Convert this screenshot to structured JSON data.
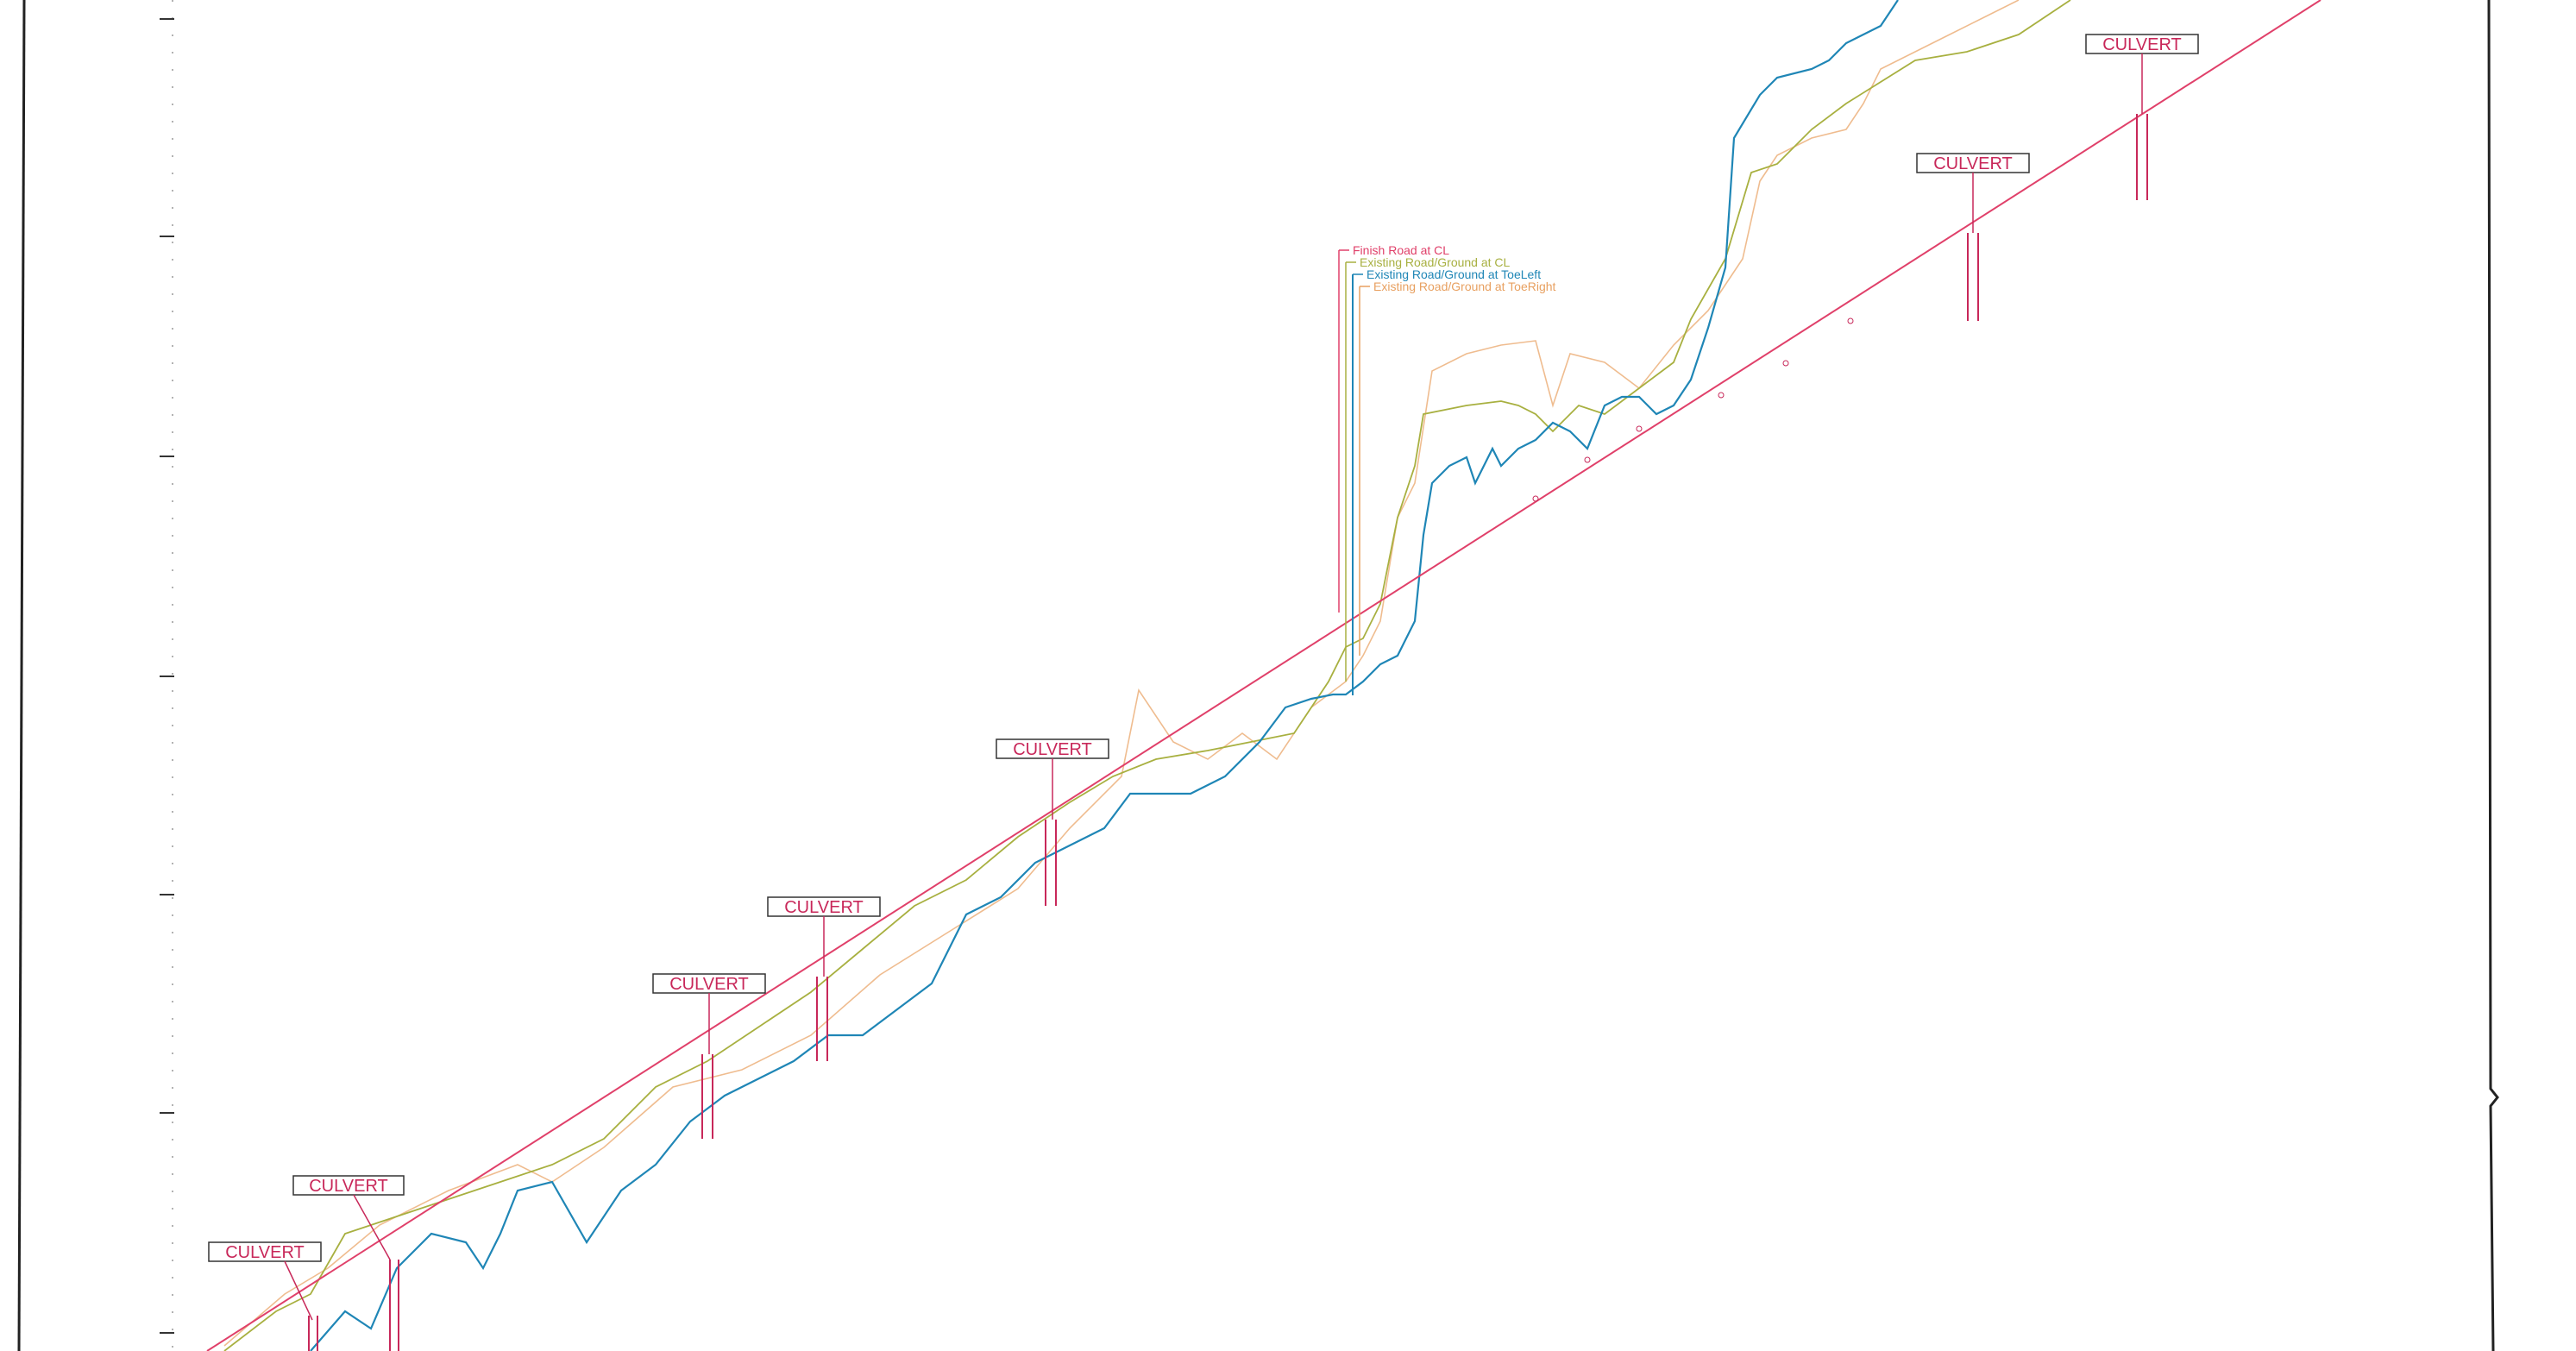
{
  "drawing": {
    "legend": {
      "items": [
        {
          "label": "Finish Road at CL",
          "color": "#e0406a"
        },
        {
          "label": "Existing Road/Ground at CL",
          "color": "#a8b040"
        },
        {
          "label": "Existing Road/Ground at ToeLeft",
          "color": "#1f86b6"
        },
        {
          "label": "Existing Road/Ground at ToeRight",
          "color": "#e8a060"
        }
      ]
    },
    "culvert_label": "CULVERT",
    "culverts": [
      {
        "id": "c1"
      },
      {
        "id": "c2"
      },
      {
        "id": "c3"
      },
      {
        "id": "c4"
      },
      {
        "id": "c5"
      },
      {
        "id": "c6"
      },
      {
        "id": "c7"
      },
      {
        "id": "c8"
      }
    ],
    "colors": {
      "finish_road": "#e0406a",
      "ground_cl": "#a8b040",
      "toe_left": "#1f86b6",
      "toe_right": "#e8a060",
      "frame": "#222222"
    }
  }
}
